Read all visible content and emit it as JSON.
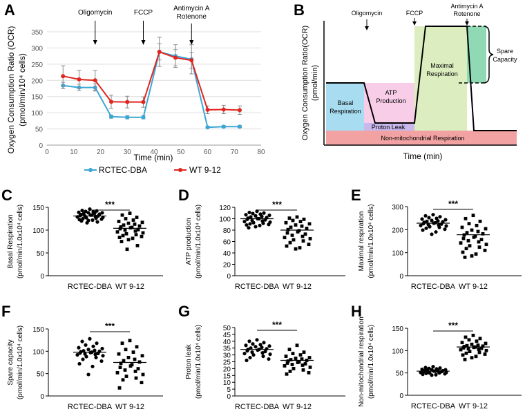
{
  "panels": {
    "A": "A",
    "B": "B",
    "C": "C",
    "D": "D",
    "E": "E",
    "F": "F",
    "G": "G",
    "H": "H"
  },
  "colors": {
    "rctec": "#3ba6d5",
    "wt": "#e0261f",
    "basal_fill": "#a8dcf0",
    "atp_fill": "#f7cde8",
    "leak_fill": "#c8b8ec",
    "maximal_fill": "#dceec0",
    "spare_fill": "#8fd9b4",
    "nonmito_fill": "#f2a2a2"
  },
  "chart_data": [
    {
      "panel": "A",
      "type": "line",
      "title": "",
      "xlabel": "Time (min)",
      "ylabel_lines": [
        "Oxygen Consumption Ratio (OCR)",
        "(pmol/min/10⁴ cells)"
      ],
      "xlim": [
        0,
        80
      ],
      "ylim": [
        0,
        350
      ],
      "x_ticks": [
        0,
        10,
        20,
        30,
        40,
        50,
        60,
        70,
        80
      ],
      "y_ticks": [
        0,
        50,
        100,
        150,
        200,
        250,
        300,
        350
      ],
      "x": [
        6,
        12,
        18,
        24,
        30,
        36,
        42,
        48,
        54,
        60,
        66,
        72
      ],
      "series": [
        {
          "name": "RCTEC-DBA",
          "color_key": "rctec",
          "values": [
            184,
            178,
            178,
            88,
            86,
            86,
            288,
            275,
            265,
            55,
            57,
            57
          ],
          "errors": [
            10,
            10,
            11,
            5,
            5,
            5,
            45,
            35,
            45,
            3,
            3,
            3
          ]
        },
        {
          "name": "WT 9-12",
          "color_key": "wt",
          "values": [
            213,
            203,
            200,
            134,
            133,
            133,
            288,
            270,
            262,
            109,
            110,
            108
          ],
          "errors": [
            32,
            28,
            30,
            20,
            18,
            16,
            25,
            25,
            25,
            12,
            13,
            13
          ]
        }
      ],
      "annotations": [
        {
          "label_lines": [
            "Oligomycin"
          ],
          "x": 18
        },
        {
          "label_lines": [
            "FCCP"
          ],
          "x": 36
        },
        {
          "label_lines": [
            "Antimycin A",
            "Rotenone"
          ],
          "x": 54
        }
      ]
    },
    {
      "panel": "B",
      "type": "diagram",
      "xlabel": "Time (min)",
      "ylabel_lines": [
        "Oxygen Consumption  Ratio(OCR)",
        "(pmol/min)"
      ],
      "injections": [
        {
          "label_lines": [
            "Oligomycin"
          ]
        },
        {
          "label_lines": [
            "FCCP"
          ]
        },
        {
          "label_lines": [
            "Antimycin A",
            "Rotenone"
          ]
        }
      ],
      "regions": {
        "basal": [
          "Basal",
          "Respiration"
        ],
        "atp": [
          "ATP",
          "Production"
        ],
        "leak": [
          "Proton Leak"
        ],
        "maximal": [
          "Maximal",
          "Respiration"
        ],
        "spare": [
          "Spare",
          "Capacity"
        ],
        "nonmito": [
          "Non-mitochondrial Respiration"
        ]
      },
      "levels": {
        "basal": 0.56,
        "leak": 0.19,
        "maximal": 1.0,
        "spare_low": 0.58,
        "nonmito": 0.0
      }
    },
    {
      "panel": "C",
      "type": "scatter",
      "ylabel_lines": [
        "Basal Respiration",
        "(pmol/min/1.0x10⁴ cells)"
      ],
      "categories": [
        "RCTEC-DBA",
        "WT 9-12"
      ],
      "ylim": [
        0,
        150
      ],
      "y_ticks": [
        0,
        50,
        100,
        150
      ],
      "means": [
        131,
        104
      ],
      "significance": "***",
      "groups": [
        [
          146,
          143,
          142,
          141,
          140,
          139,
          138,
          138,
          137,
          136,
          135,
          134,
          133,
          133,
          132,
          131,
          131,
          130,
          129,
          128,
          127,
          126,
          125,
          124,
          123,
          122,
          121,
          120,
          118,
          116
        ],
        [
          137,
          133,
          128,
          125,
          122,
          119,
          117,
          115,
          113,
          111,
          109,
          107,
          106,
          105,
          103,
          101,
          100,
          98,
          96,
          94,
          92,
          90,
          88,
          86,
          84,
          82,
          79,
          75,
          66,
          58
        ]
      ]
    },
    {
      "panel": "D",
      "type": "scatter",
      "ylabel_lines": [
        "ATP production",
        "(pmol/min/1.0x10⁴ cells)"
      ],
      "categories": [
        "RCTEC-DBA",
        "WT 9-12"
      ],
      "ylim": [
        0,
        120
      ],
      "y_ticks": [
        0,
        20,
        40,
        60,
        80,
        100,
        120
      ],
      "means": [
        100,
        80
      ],
      "significance": "***",
      "groups": [
        [
          113,
          111,
          110,
          109,
          108,
          107,
          106,
          105,
          104,
          103,
          102,
          101,
          100,
          100,
          99,
          98,
          97,
          96,
          95,
          94,
          93,
          92,
          91,
          90,
          89,
          88,
          86,
          84
        ],
        [
          103,
          101,
          99,
          97,
          95,
          93,
          91,
          89,
          87,
          85,
          83,
          81,
          79,
          77,
          75,
          73,
          71,
          69,
          67,
          65,
          63,
          61,
          58,
          55,
          52,
          49,
          47
        ]
      ]
    },
    {
      "panel": "E",
      "type": "scatter",
      "ylabel_lines": [
        "Maximal respiration",
        "(pmol/min/1.0x10⁴ cells)"
      ],
      "categories": [
        "RCTEC-DBA",
        "WT 9-12"
      ],
      "ylim": [
        0,
        300
      ],
      "y_ticks": [
        0,
        100,
        200,
        300
      ],
      "means": [
        228,
        178
      ],
      "significance": "***",
      "groups": [
        [
          265,
          260,
          256,
          252,
          249,
          246,
          243,
          240,
          238,
          236,
          234,
          232,
          230,
          228,
          226,
          224,
          222,
          220,
          218,
          216,
          213,
          210,
          206,
          202,
          198,
          190,
          180
        ],
        [
          262,
          248,
          236,
          226,
          218,
          210,
          204,
          198,
          192,
          187,
          182,
          177,
          172,
          167,
          162,
          157,
          152,
          147,
          142,
          136,
          130,
          124,
          118,
          110,
          102,
          94,
          86,
          80
        ]
      ]
    },
    {
      "panel": "F",
      "type": "scatter",
      "ylabel_lines": [
        "Spare capacity",
        "(pmol/min/1.0x10⁴ cells)"
      ],
      "categories": [
        "RCTEC-DBA",
        "WT 9-12"
      ],
      "ylim": [
        0,
        150
      ],
      "y_ticks": [
        0,
        50,
        100,
        150
      ],
      "means": [
        98,
        75
      ],
      "significance": "***",
      "groups": [
        [
          128,
          122,
          118,
          114,
          111,
          108,
          106,
          104,
          102,
          101,
          100,
          99,
          98,
          97,
          96,
          95,
          94,
          93,
          92,
          90,
          88,
          86,
          82,
          78,
          72,
          66,
          48
        ],
        [
          124,
          118,
          110,
          104,
          98,
          94,
          90,
          86,
          82,
          79,
          76,
          73,
          70,
          67,
          64,
          61,
          58,
          55,
          52,
          48,
          44,
          40,
          36,
          30,
          18
        ]
      ]
    },
    {
      "panel": "G",
      "type": "scatter",
      "ylabel_lines": [
        "Proton leak",
        "(pmol/min/1.0x10⁴ cells)"
      ],
      "categories": [
        "RCTEC-DBA",
        "WT 9-12"
      ],
      "ylim": [
        0,
        50
      ],
      "y_ticks": [
        0,
        5,
        10,
        15,
        20,
        25,
        30,
        35,
        40,
        45,
        50
      ],
      "means": [
        34,
        26
      ],
      "significance": "***",
      "groups": [
        [
          41,
          40,
          39,
          38,
          37.5,
          37,
          36.5,
          36,
          35.5,
          35,
          34.5,
          34,
          34,
          33.5,
          33,
          32.5,
          32,
          31.5,
          31,
          30.5,
          30,
          29,
          28,
          27,
          26
        ],
        [
          37,
          34,
          32,
          31,
          30,
          29,
          28,
          27.5,
          27,
          26.5,
          26,
          25.5,
          25,
          24.5,
          24,
          23.5,
          23,
          22.5,
          22,
          21,
          20,
          19,
          18,
          17,
          16
        ]
      ]
    },
    {
      "panel": "H",
      "type": "scatter",
      "ylabel_lines": [
        "Non-mitochondrial respiration",
        "(pmol/min/1.0x10⁴ cells)"
      ],
      "categories": [
        "RCTEC-DBA",
        "WT 9-12"
      ],
      "ylim": [
        0,
        150
      ],
      "y_ticks": [
        0,
        50,
        100,
        150
      ],
      "means": [
        54,
        108
      ],
      "significance": "***",
      "groups": [
        [
          64,
          62,
          61,
          60,
          59,
          58,
          57,
          57,
          56,
          56,
          55,
          55,
          54,
          54,
          53,
          53,
          52,
          52,
          51,
          51,
          50,
          50,
          49,
          48,
          47,
          46,
          45
        ],
        [
          134,
          130,
          127,
          124,
          121,
          118,
          116,
          114,
          112,
          111,
          110,
          109,
          108,
          107,
          106,
          105,
          104,
          103,
          102,
          100,
          98,
          96,
          94,
          92,
          90,
          87,
          84,
          80
        ]
      ]
    }
  ]
}
